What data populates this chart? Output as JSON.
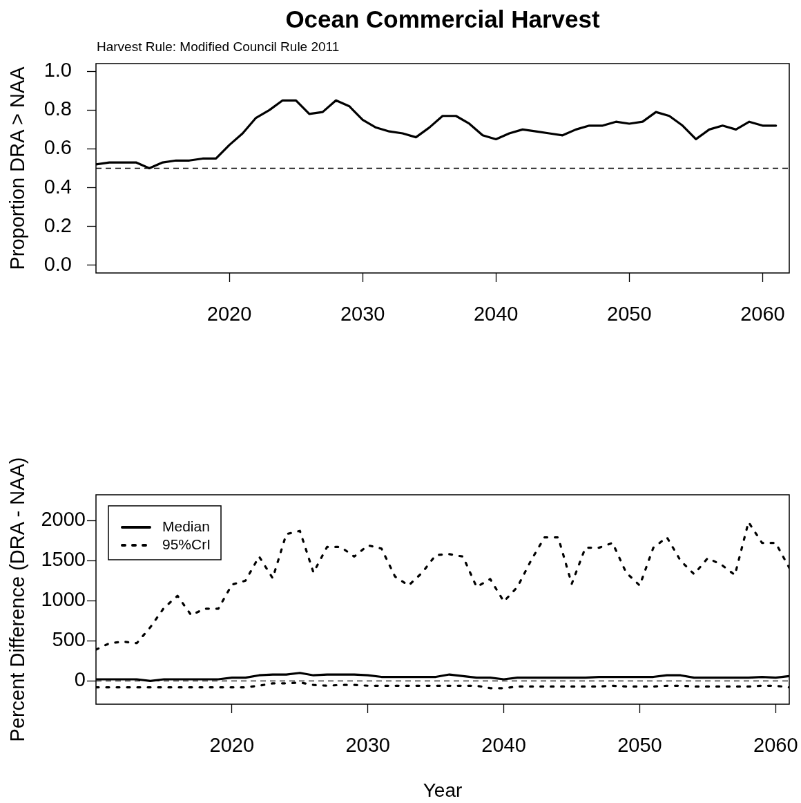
{
  "chart_data": [
    {
      "type": "line",
      "title": "Ocean Commercial Harvest",
      "subtitle": "Harvest Rule: Modified Council Rule 2011",
      "ylabel": "Proportion DRA > NAA",
      "x": [
        2010,
        2011,
        2012,
        2013,
        2014,
        2015,
        2016,
        2017,
        2018,
        2019,
        2020,
        2021,
        2022,
        2023,
        2024,
        2025,
        2026,
        2027,
        2028,
        2029,
        2030,
        2031,
        2032,
        2033,
        2034,
        2035,
        2036,
        2037,
        2038,
        2039,
        2040,
        2041,
        2042,
        2043,
        2044,
        2045,
        2046,
        2047,
        2048,
        2049,
        2050,
        2051,
        2052,
        2053,
        2054,
        2055,
        2056,
        2057,
        2058,
        2059,
        2060,
        2061
      ],
      "xlim": [
        2010,
        2062
      ],
      "xticks": [
        2020,
        2030,
        2040,
        2050,
        2060
      ],
      "ylim": [
        -0.04,
        1.04
      ],
      "yticks": [
        {
          "value": 0,
          "label": "0.0"
        },
        0.2,
        0.4,
        0.6,
        0.8,
        {
          "value": 1,
          "label": "1.0"
        }
      ],
      "series": [
        {
          "color": "#000000",
          "line_style": "solid",
          "values": [
            0.52,
            0.53,
            0.53,
            0.53,
            0.5,
            0.53,
            0.54,
            0.54,
            0.55,
            0.55,
            0.62,
            0.68,
            0.76,
            0.8,
            0.85,
            0.85,
            0.78,
            0.79,
            0.85,
            0.82,
            0.75,
            0.71,
            0.69,
            0.68,
            0.66,
            0.71,
            0.77,
            0.77,
            0.73,
            0.67,
            0.65,
            0.68,
            0.7,
            0.69,
            0.68,
            0.67,
            0.7,
            0.72,
            0.72,
            0.74,
            0.73,
            0.74,
            0.79,
            0.77,
            0.72,
            0.65,
            0.7,
            0.72,
            0.7,
            0.74,
            0.72,
            0.72
          ]
        }
      ],
      "ref_lines": [
        {
          "axis": "y",
          "value": 0.5,
          "color": "#000000",
          "line_style": "dashed"
        }
      ]
    },
    {
      "type": "line",
      "xlabel": "Year",
      "ylabel": "Percent Difference (DRA - NAA)",
      "legend": "top left",
      "x": [
        2010,
        2011,
        2012,
        2013,
        2014,
        2015,
        2016,
        2017,
        2018,
        2019,
        2020,
        2021,
        2022,
        2023,
        2024,
        2025,
        2026,
        2027,
        2028,
        2029,
        2030,
        2031,
        2032,
        2033,
        2034,
        2035,
        2036,
        2037,
        2038,
        2039,
        2040,
        2041,
        2042,
        2043,
        2044,
        2045,
        2046,
        2047,
        2048,
        2049,
        2050,
        2051,
        2052,
        2053,
        2054,
        2055,
        2056,
        2057,
        2058,
        2059,
        2060,
        2061
      ],
      "xlim": [
        2010,
        2061
      ],
      "xticks": [
        2020,
        2030,
        2040,
        2050,
        2060
      ],
      "ylim": [
        -290,
        2320
      ],
      "yticks": [
        0,
        500,
        1000,
        1500,
        2000
      ],
      "series": [
        {
          "name": "Median",
          "color": "#000000",
          "line_style": "solid",
          "values": [
            20,
            20,
            20,
            20,
            0,
            20,
            20,
            20,
            20,
            20,
            40,
            40,
            70,
            80,
            80,
            100,
            70,
            80,
            80,
            80,
            70,
            50,
            50,
            50,
            50,
            50,
            80,
            60,
            40,
            40,
            20,
            40,
            40,
            40,
            40,
            40,
            40,
            50,
            50,
            50,
            50,
            50,
            70,
            70,
            40,
            40,
            40,
            40,
            40,
            50,
            40,
            60
          ]
        },
        {
          "name": "95%CrI",
          "color": "#000000",
          "line_style": "dashed",
          "values": [
            390,
            470,
            490,
            470,
            670,
            910,
            1060,
            820,
            900,
            900,
            1200,
            1250,
            1550,
            1280,
            1830,
            1870,
            1350,
            1670,
            1670,
            1550,
            1690,
            1650,
            1300,
            1190,
            1350,
            1570,
            1580,
            1550,
            1170,
            1270,
            990,
            1170,
            1500,
            1790,
            1790,
            1210,
            1660,
            1660,
            1720,
            1350,
            1190,
            1660,
            1790,
            1500,
            1330,
            1530,
            1450,
            1320,
            1980,
            1720,
            1720,
            1410
          ]
        },
        {
          "color": "#000000",
          "line_style": "dashed",
          "values": [
            -80,
            -80,
            -80,
            -80,
            -80,
            -80,
            -80,
            -80,
            -80,
            -80,
            -80,
            -80,
            -60,
            -30,
            -30,
            -20,
            -50,
            -60,
            -50,
            -50,
            -60,
            -60,
            -60,
            -60,
            -60,
            -60,
            -60,
            -60,
            -60,
            -90,
            -90,
            -70,
            -70,
            -70,
            -70,
            -70,
            -70,
            -70,
            -60,
            -70,
            -70,
            -70,
            -60,
            -60,
            -70,
            -70,
            -70,
            -70,
            -70,
            -60,
            -60,
            -80
          ]
        }
      ],
      "ref_lines": [
        {
          "axis": "y",
          "value": 0,
          "color": "#000000",
          "line_style": "dashed"
        }
      ]
    }
  ]
}
